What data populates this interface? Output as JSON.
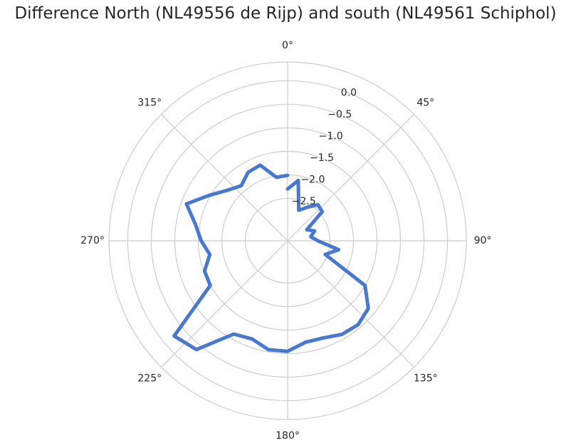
{
  "chart_data": {
    "type": "line",
    "subtype": "polar",
    "title": "Difference North (NL49556 de Rijp) and south (NL49561 Schiphol)",
    "theta_direction": "clockwise",
    "theta_zero": "top",
    "theta_tick_labels": [
      "0°",
      "45°",
      "90°",
      "135°",
      "180°",
      "225°",
      "270°",
      "315°"
    ],
    "theta_ticks_deg": [
      0,
      45,
      90,
      135,
      180,
      225,
      270,
      315
    ],
    "r_tick_values": [
      0.0,
      -0.5,
      -1.0,
      -1.5,
      -2.0,
      -2.5
    ],
    "r_tick_labels": [
      "0.0",
      "−0.5",
      "−1.0",
      "−1.5",
      "−2.0",
      "−2.5"
    ],
    "r_min": -3.4,
    "r_max": 0.4,
    "grid": true,
    "series": [
      {
        "color": "#4878cf",
        "theta_deg": [
          0,
          10,
          20,
          30,
          40,
          50,
          60,
          70,
          80,
          90,
          100,
          110,
          120,
          130,
          140,
          150,
          160,
          170,
          180,
          190,
          200,
          210,
          220,
          230,
          240,
          250,
          260,
          270,
          280,
          290,
          300,
          310,
          320,
          330,
          340,
          350,
          360
        ],
        "r": [
          -2.3,
          -2.1,
          -2.71,
          -2.58,
          -2.4,
          -2.44,
          -2.93,
          -2.79,
          -2.9,
          -2.76,
          -2.3,
          -2.55,
          -1.5,
          -1.16,
          -1.07,
          -1.1,
          -1.2,
          -1.21,
          -1.05,
          -1.05,
          -1.18,
          -1.11,
          -0.38,
          -0.25,
          -1.5,
          -1.52,
          -1.72,
          -1.56,
          -1.41,
          -1.11,
          -1.47,
          -1.73,
          -1.87,
          -1.72,
          -1.69,
          -2.03,
          -2.01
        ]
      }
    ]
  }
}
